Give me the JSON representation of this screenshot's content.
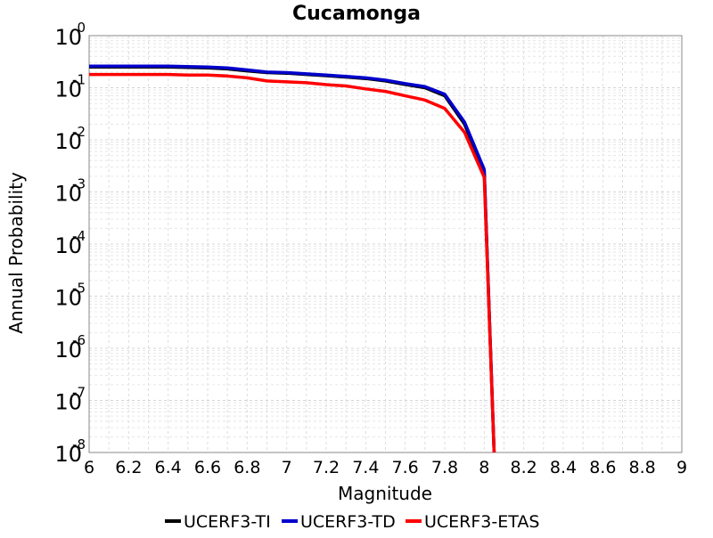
{
  "chart_data": {
    "type": "line",
    "title": "Cucamonga",
    "xlabel": "Magnitude",
    "ylabel": "Annual Probability",
    "xlim": [
      6,
      9
    ],
    "ylim": [
      1e-08,
      1
    ],
    "yscale": "log",
    "grid": true,
    "legend_position": "bottom",
    "x_ticks": [
      "6",
      "6.2",
      "6.4",
      "6.6",
      "6.8",
      "7",
      "7.2",
      "7.4",
      "7.6",
      "7.8",
      "8",
      "8.2",
      "8.4",
      "8.6",
      "8.8",
      "9"
    ],
    "y_ticks": [
      {
        "base": "10",
        "exp": "0",
        "value": 1
      },
      {
        "base": "10",
        "exp": "-1",
        "value": 0.1
      },
      {
        "base": "10",
        "exp": "-2",
        "value": 0.01
      },
      {
        "base": "10",
        "exp": "-3",
        "value": 0.001
      },
      {
        "base": "10",
        "exp": "-4",
        "value": 0.0001
      },
      {
        "base": "10",
        "exp": "-5",
        "value": 1e-05
      },
      {
        "base": "10",
        "exp": "-6",
        "value": 1e-06
      },
      {
        "base": "10",
        "exp": "-7",
        "value": 1e-07
      },
      {
        "base": "10",
        "exp": "-8",
        "value": 1e-08
      }
    ],
    "series": [
      {
        "name": "UCERF3-TI",
        "color": "#000000",
        "x": [
          6.0,
          6.1,
          6.2,
          6.3,
          6.4,
          6.5,
          6.6,
          6.7,
          6.8,
          6.9,
          7.0,
          7.1,
          7.2,
          7.3,
          7.4,
          7.5,
          7.6,
          7.7,
          7.8,
          7.9,
          8.0,
          8.05
        ],
        "y": [
          0.25,
          0.25,
          0.25,
          0.25,
          0.25,
          0.245,
          0.24,
          0.23,
          0.21,
          0.195,
          0.19,
          0.18,
          0.17,
          0.16,
          0.15,
          0.135,
          0.115,
          0.1,
          0.07,
          0.02,
          0.0025,
          1e-08
        ]
      },
      {
        "name": "UCERF3-TD",
        "color": "#0000cc",
        "x": [
          6.0,
          6.1,
          6.2,
          6.3,
          6.4,
          6.5,
          6.6,
          6.7,
          6.8,
          6.9,
          7.0,
          7.1,
          7.2,
          7.3,
          7.4,
          7.5,
          7.6,
          7.7,
          7.8,
          7.9,
          8.0,
          8.05
        ],
        "y": [
          0.26,
          0.26,
          0.26,
          0.26,
          0.26,
          0.255,
          0.25,
          0.24,
          0.22,
          0.2,
          0.195,
          0.185,
          0.175,
          0.165,
          0.155,
          0.14,
          0.12,
          0.105,
          0.075,
          0.022,
          0.0027,
          1e-08
        ]
      },
      {
        "name": "UCERF3-ETAS",
        "color": "#ff0000",
        "x": [
          6.0,
          6.1,
          6.2,
          6.3,
          6.4,
          6.5,
          6.6,
          6.7,
          6.8,
          6.9,
          7.0,
          7.1,
          7.2,
          7.3,
          7.4,
          7.5,
          7.6,
          7.7,
          7.8,
          7.9,
          8.0,
          8.05
        ],
        "y": [
          0.18,
          0.18,
          0.18,
          0.18,
          0.18,
          0.175,
          0.175,
          0.168,
          0.155,
          0.135,
          0.13,
          0.125,
          0.115,
          0.108,
          0.095,
          0.085,
          0.07,
          0.058,
          0.04,
          0.014,
          0.0019,
          1e-08
        ]
      }
    ]
  }
}
